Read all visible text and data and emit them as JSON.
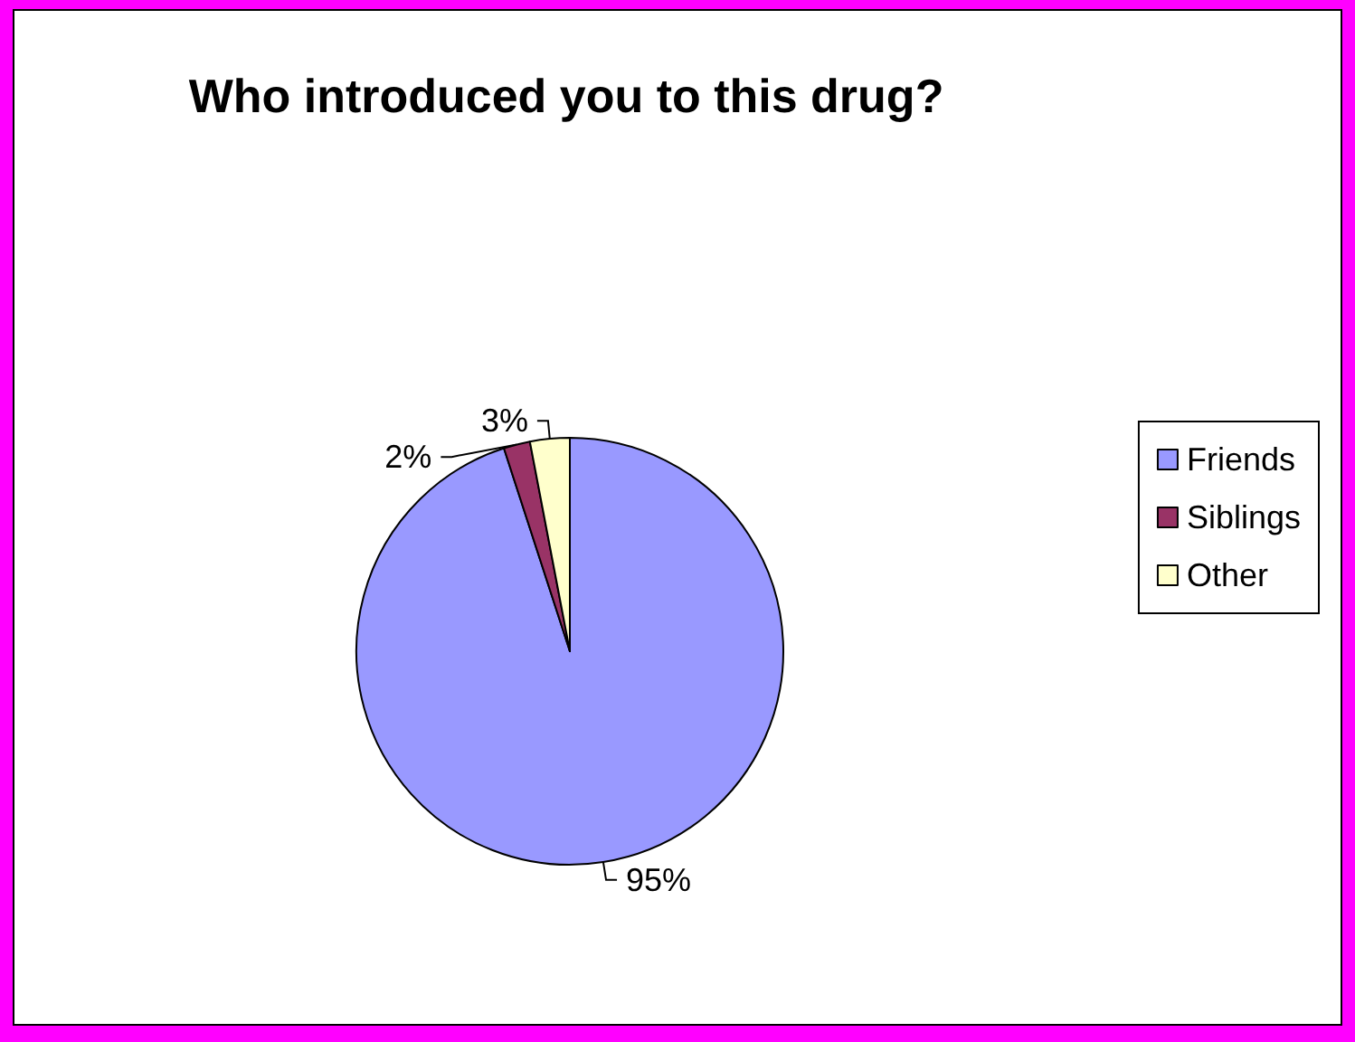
{
  "chart_data": {
    "type": "pie",
    "title": "Who introduced you to this drug?",
    "categories": [
      "Friends",
      "Siblings",
      "Other"
    ],
    "values": [
      95,
      2,
      3
    ],
    "value_labels": [
      "95%",
      "2%",
      "3%"
    ],
    "colors": [
      "#9999ff",
      "#993366",
      "#ffffcc"
    ],
    "legend": "right"
  }
}
